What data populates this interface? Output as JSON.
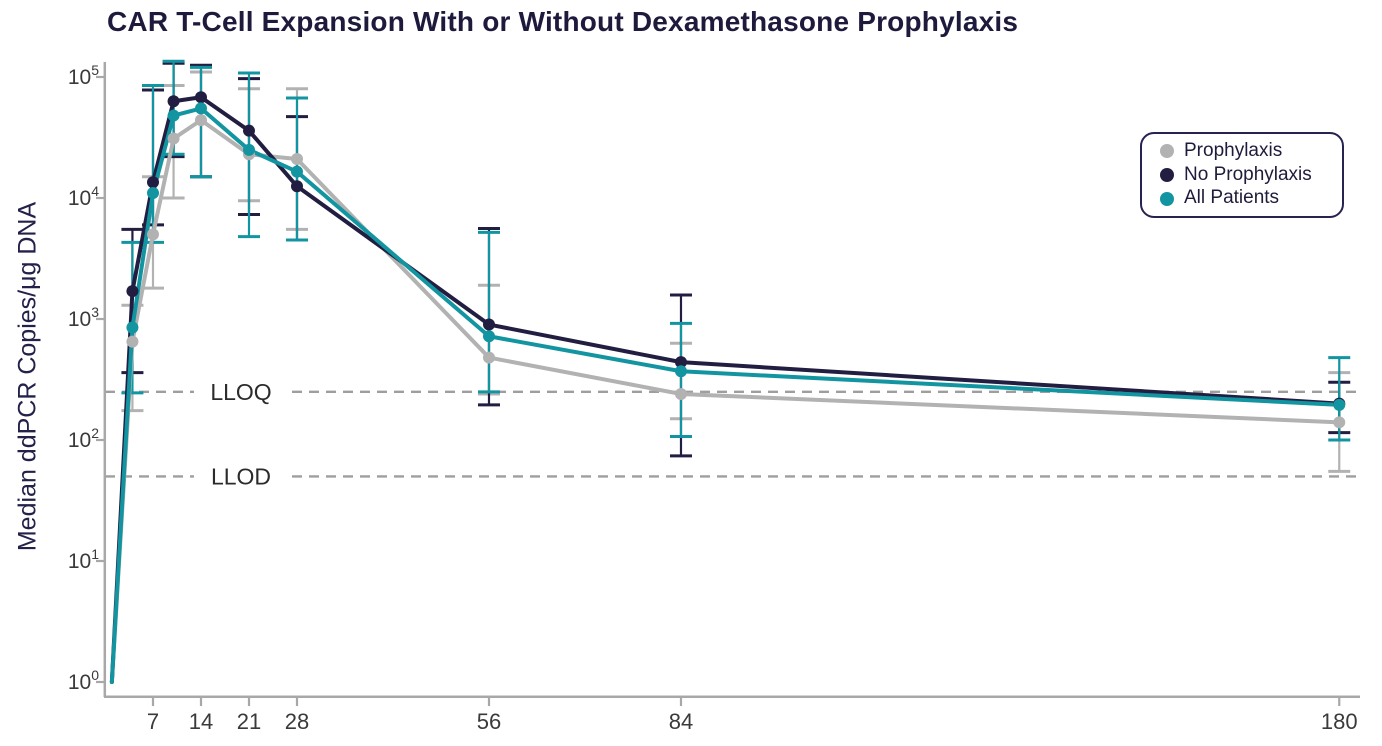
{
  "title": "CAR T-Cell Expansion With or Without Dexamethasone Prophylaxis",
  "chart_data": {
    "type": "line",
    "title": "CAR T-Cell Expansion With or Without Dexamethasone Prophylaxis",
    "xlabel": "",
    "ylabel": "Median ddPCR Copies/μg DNA",
    "y_scale": "log10",
    "ylim": [
      1,
      100000
    ],
    "xlim": [
      0,
      183
    ],
    "grid": false,
    "legend_position": "upper right",
    "x_tick_days": [
      7,
      14,
      21,
      28,
      56,
      84,
      180
    ],
    "y_tick_exponents": [
      0,
      1,
      2,
      3,
      4,
      5
    ],
    "reference_lines": [
      {
        "label": "LLOQ",
        "value": 250
      },
      {
        "label": "LLOD",
        "value": 50
      }
    ],
    "x_days": [
      1,
      4,
      7,
      10,
      14,
      21,
      28,
      56,
      84,
      180
    ],
    "series": [
      {
        "name": "Prophylaxis",
        "color": "#b2b2b2",
        "values": [
          1,
          650,
          5000,
          31000,
          44000,
          23000,
          21000,
          480,
          240,
          140
        ],
        "err_lo": [
          null,
          175,
          1800,
          10000,
          15000,
          9500,
          5500,
          240,
          150,
          55
        ],
        "err_hi": [
          null,
          1300,
          15000,
          85000,
          110000,
          80000,
          80000,
          1900,
          630,
          360
        ]
      },
      {
        "name": "No Prophylaxis",
        "color": "#221e42",
        "values": [
          1,
          1700,
          13500,
          63000,
          68000,
          36000,
          12500,
          900,
          440,
          200
        ],
        "err_lo": [
          null,
          360,
          6000,
          22000,
          15000,
          7300,
          4500,
          195,
          74,
          115
        ],
        "err_hi": [
          null,
          5500,
          78000,
          130000,
          125000,
          97000,
          47000,
          5600,
          1580,
          300
        ]
      },
      {
        "name": "All Patients",
        "color": "#1295a1",
        "values": [
          1,
          850,
          11000,
          48000,
          55000,
          25000,
          16500,
          720,
          370,
          195
        ],
        "err_lo": [
          null,
          245,
          4300,
          23000,
          15000,
          4800,
          4500,
          250,
          107,
          100
        ],
        "err_hi": [
          null,
          4300,
          85000,
          135000,
          120000,
          108000,
          67000,
          5200,
          920,
          480
        ]
      }
    ],
    "colors": {
      "axis": "#a8a8a8",
      "tick_text": "#3a3a3a",
      "reference_line": "#9e9e9e",
      "reference_text": "#2b2b2b",
      "title_text": "#1d1a3c"
    }
  }
}
